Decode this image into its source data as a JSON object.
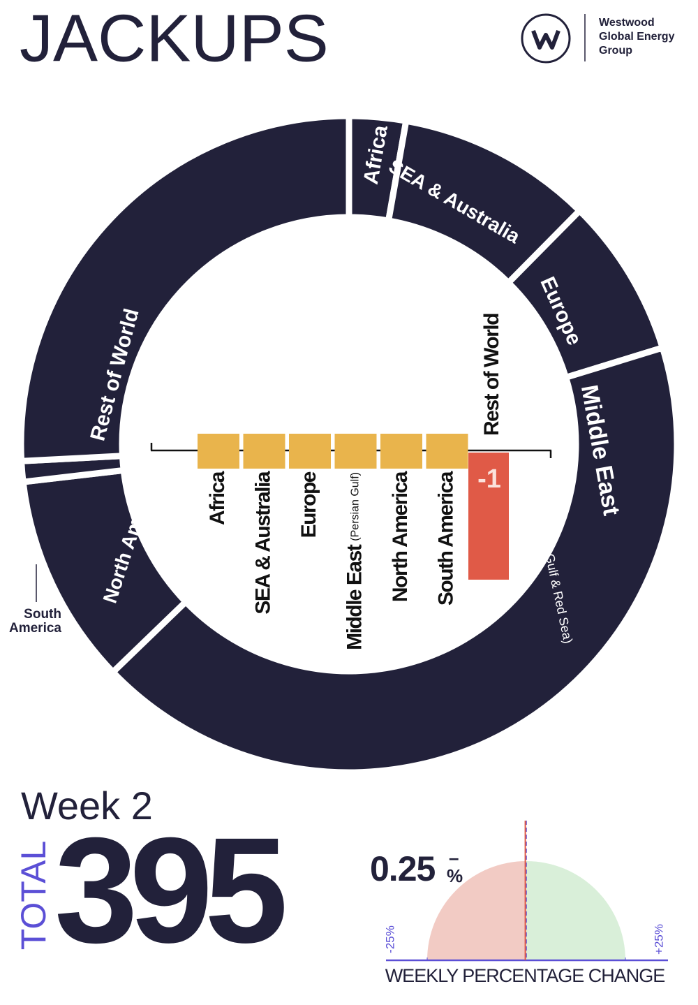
{
  "header": {
    "title": "JACKUPS",
    "logo_lines": [
      "Westwood",
      "Global Energy",
      "Group"
    ]
  },
  "chart_data": [
    {
      "type": "donut",
      "categories": [
        "Africa",
        "SEA & Australia",
        "Europe",
        "Middle East",
        "North America",
        "South America",
        "Rest of World"
      ],
      "category_notes": [
        null,
        null,
        null,
        "(Persian Gulf & Red Sea)",
        null,
        null,
        null
      ],
      "values": [
        11,
        38,
        31,
        168,
        41,
        4,
        102
      ],
      "color": "#22213a"
    },
    {
      "type": "bar",
      "categories": [
        "Africa",
        "SEA & Australia",
        "Europe",
        "Middle East",
        "North America",
        "South America",
        "Rest of World"
      ],
      "category_notes": [
        null,
        null,
        null,
        "(Persian Gulf)",
        null,
        null,
        null
      ],
      "values": [
        0,
        0,
        0,
        0,
        0,
        0,
        -1
      ],
      "value_labels": [
        null,
        null,
        null,
        null,
        null,
        null,
        "-1"
      ],
      "ylim": [
        -1,
        0
      ],
      "colors": {
        "zero": "#e9b44c",
        "negative": "#e05a47"
      }
    },
    {
      "type": "gauge",
      "value": -0.25,
      "value_label": "0.25",
      "sign": "–",
      "unit": "%",
      "xlim": [
        -25,
        25
      ],
      "xticks": [
        {
          "value": -25,
          "label": "-25%"
        },
        {
          "value": 25,
          "label": "+25%"
        }
      ],
      "xlabel": "WEEKLY PERCENTAGE CHANGE",
      "colors": {
        "negative": "#f2cbc4",
        "positive": "#d9efd9",
        "needle": "#e05a47",
        "axis": "#5b4fd6"
      }
    }
  ],
  "summary": {
    "week": "Week 2",
    "total_label": "TOTAL",
    "total": 395
  }
}
